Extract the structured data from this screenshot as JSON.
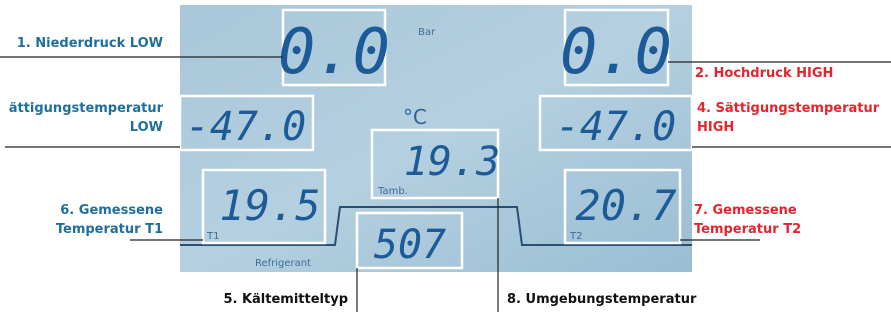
{
  "lcd": {
    "unit_pressure": "Bar",
    "unit_temp": "°C",
    "label_tamb": "Tamb.",
    "label_t1": "T1",
    "label_t2": "T2",
    "label_refrigerant": "Refrigerant",
    "low_pressure": "0.0",
    "high_pressure": "0.0",
    "low_sat_temp": "-47.0",
    "high_sat_temp": "-47.0",
    "ambient": "19.3",
    "t1": "19.5",
    "t2": "20.7",
    "refrigerant": "507"
  },
  "annotations": {
    "a1": "1. Niederdruck LOW",
    "a2": "2. Hochdruck HIGH",
    "a3_line1": "ättigungstemperatur",
    "a3_line2": "LOW",
    "a4_line1": "4. Sättigungstemperatur",
    "a4_line2": "HIGH",
    "a5": "5. Kältemitteltyp",
    "a6_line1": "6. Gemessene",
    "a6_line2": "Temperatur T1",
    "a7_line1": "7. Gemessene",
    "a7_line2": "Temperatur T2",
    "a8": "8. Umgebungstemperatur"
  }
}
